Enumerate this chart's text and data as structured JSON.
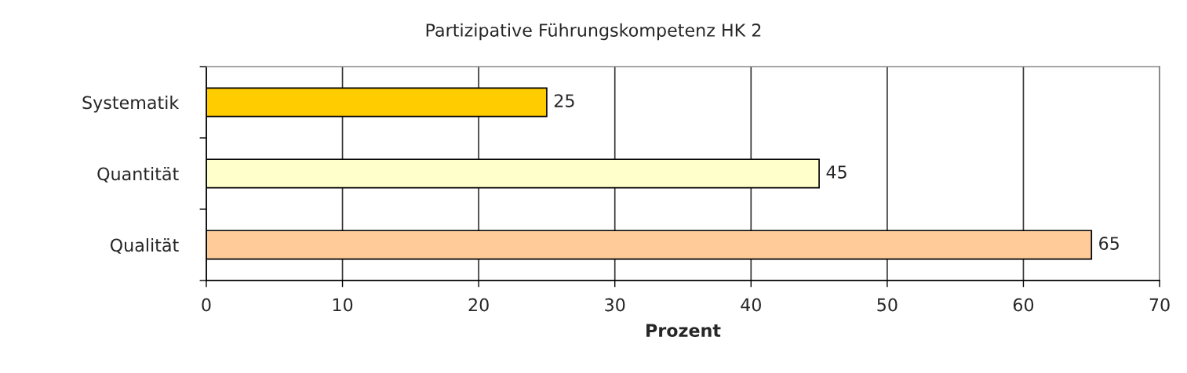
{
  "chart_data": {
    "type": "bar",
    "orientation": "horizontal",
    "title": "Partizipative Führungskompetenz HK 2",
    "xlabel": "Prozent",
    "categories": [
      "Systematik",
      "Quantität",
      "Qualität"
    ],
    "values": [
      25,
      45,
      65
    ],
    "colors": [
      "#ffcc00",
      "#ffffcc",
      "#ffcc99"
    ],
    "xlim": [
      0,
      70
    ],
    "xticks": [
      0,
      10,
      20,
      30,
      40,
      50,
      60,
      70
    ],
    "grid": "x",
    "data_labels": true
  }
}
